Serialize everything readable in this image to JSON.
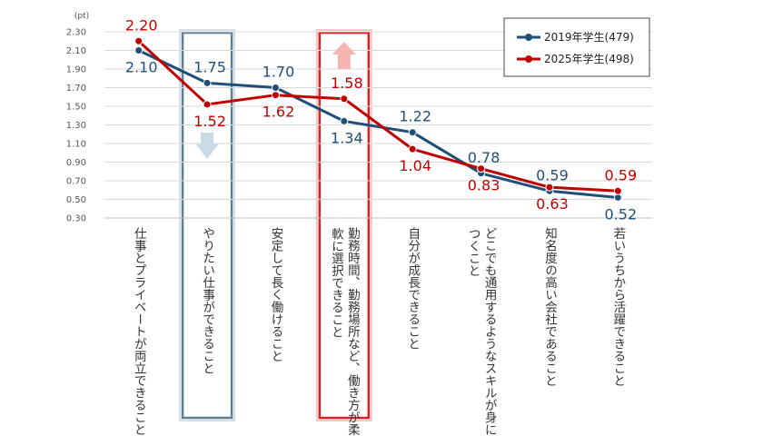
{
  "chart_data": {
    "type": "line",
    "unit": "(pt)",
    "ylim": [
      0.3,
      2.3
    ],
    "yticks": [
      "0.30",
      "0.50",
      "0.70",
      "0.90",
      "1.10",
      "1.30",
      "1.50",
      "1.70",
      "1.90",
      "2.10",
      "2.30"
    ],
    "grid": true,
    "legend_position": "top-right",
    "categories": [
      "仕事とプライベートが両立できること",
      "やりたい仕事ができること",
      "安定して長く働けること",
      "勤務時間、勤務場所など、働き方が柔軟に選択できること",
      "自分が成長できること",
      "どこでも通用するようなスキルが身につくこと",
      "知名度の高い会社であること",
      "若いうちから活躍できること"
    ],
    "series": [
      {
        "name": "2019年学生(479)",
        "color": "#1f4e79",
        "values": [
          2.1,
          1.75,
          1.7,
          1.34,
          1.22,
          0.78,
          0.59,
          0.52
        ],
        "labels": [
          "2.10",
          "1.75",
          "1.70",
          "1.34",
          "1.22",
          "0.78",
          "0.59",
          "0.52"
        ]
      },
      {
        "name": "2025年学生(498)",
        "color": "#c00000",
        "values": [
          2.2,
          1.52,
          1.62,
          1.58,
          1.04,
          0.83,
          0.63,
          0.59
        ],
        "labels": [
          "2.20",
          "1.52",
          "1.62",
          "1.58",
          "1.04",
          "0.83",
          "0.63",
          "0.59"
        ]
      }
    ],
    "highlights": [
      {
        "category_index": 1,
        "color": "#5c7d93",
        "arrow": "down",
        "arrow_color": "#c9dbe6"
      },
      {
        "category_index": 3,
        "color": "#e02020",
        "arrow": "up",
        "arrow_color": "#f5b5b5"
      }
    ]
  }
}
